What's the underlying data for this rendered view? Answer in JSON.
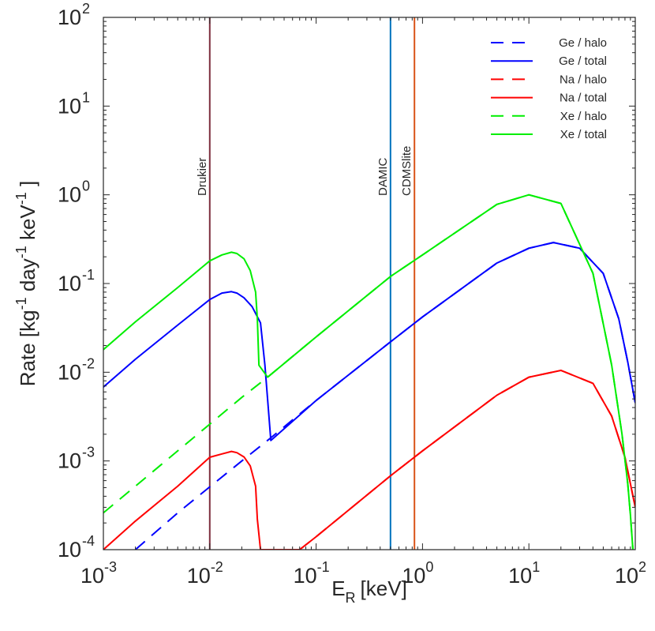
{
  "chart_data": {
    "type": "line",
    "title": "",
    "xlabel": {
      "base": "E",
      "sub": "R",
      "unit": "[keV]"
    },
    "ylabel": {
      "parts": [
        "Rate [kg",
        "-1",
        "  day",
        "-1",
        "  keV",
        "-1",
        " ]"
      ]
    },
    "xscale": "log",
    "yscale": "log",
    "xlim": [
      0.001,
      100
    ],
    "ylim": [
      0.0001,
      100
    ],
    "xticks": [
      {
        "base": "10",
        "exp": "-3"
      },
      {
        "base": "10",
        "exp": "-2"
      },
      {
        "base": "10",
        "exp": "-1"
      },
      {
        "base": "10",
        "exp": "0"
      },
      {
        "base": "10",
        "exp": "1"
      },
      {
        "base": "10",
        "exp": "2"
      }
    ],
    "yticks": [
      {
        "base": "10",
        "exp": "-4"
      },
      {
        "base": "10",
        "exp": "-3"
      },
      {
        "base": "10",
        "exp": "-2"
      },
      {
        "base": "10",
        "exp": "-1"
      },
      {
        "base": "10",
        "exp": "0"
      },
      {
        "base": "10",
        "exp": "1"
      },
      {
        "base": "10",
        "exp": "2"
      }
    ],
    "grid": false,
    "legend_position": "top-right",
    "vlines": [
      {
        "label": "Drukier",
        "x": 0.01,
        "color": "#7e2f3f"
      },
      {
        "label": "DAMIC",
        "x": 0.5,
        "color": "#0072bd"
      },
      {
        "label": "CDMSlite",
        "x": 0.84,
        "color": "#d95319"
      }
    ],
    "series": [
      {
        "name": "Ge / halo",
        "color": "#0000ff",
        "dash": true,
        "x": [
          0.002,
          0.005,
          0.01,
          0.02,
          0.037,
          0.1,
          0.5,
          1,
          5,
          10,
          17,
          30,
          50,
          70,
          85,
          100
        ],
        "y": [
          0.0001,
          0.00026,
          0.00051,
          0.001,
          0.0018,
          0.0048,
          0.022,
          0.042,
          0.17,
          0.25,
          0.29,
          0.25,
          0.13,
          0.04,
          0.013,
          0.0045
        ]
      },
      {
        "name": "Ge / total",
        "color": "#0000ff",
        "dash": false,
        "x": [
          0.001,
          0.002,
          0.005,
          0.01,
          0.013,
          0.016,
          0.018,
          0.021,
          0.025,
          0.03,
          0.033,
          0.0375,
          0.1,
          0.5,
          1,
          5,
          10,
          17,
          30,
          50,
          70,
          85,
          100
        ],
        "y": [
          0.0068,
          0.014,
          0.034,
          0.066,
          0.078,
          0.081,
          0.078,
          0.069,
          0.055,
          0.036,
          0.012,
          0.0017,
          0.0048,
          0.022,
          0.042,
          0.17,
          0.25,
          0.29,
          0.25,
          0.13,
          0.04,
          0.013,
          0.0045
        ]
      },
      {
        "name": "Na / halo",
        "color": "#ff0000",
        "dash": true,
        "x": [
          0.07,
          0.1,
          0.5,
          1,
          5,
          10,
          20,
          40,
          60,
          80,
          100
        ],
        "y": [
          0.0001,
          0.00014,
          0.00068,
          0.0013,
          0.0055,
          0.0088,
          0.0105,
          0.0075,
          0.0032,
          0.0011,
          0.0003
        ]
      },
      {
        "name": "Na / total",
        "color": "#ff0000",
        "dash": false,
        "x": [
          0.001,
          0.002,
          0.005,
          0.01,
          0.013,
          0.016,
          0.018,
          0.021,
          0.024,
          0.027,
          0.028,
          0.03,
          0.07,
          0.1,
          0.5,
          1,
          5,
          10,
          20,
          40,
          60,
          80,
          100
        ],
        "y": [
          0.0001,
          0.00021,
          0.00052,
          0.0011,
          0.0012,
          0.00128,
          0.00124,
          0.00111,
          0.00088,
          0.00052,
          0.00022,
          0.0001,
          0.0001,
          0.00014,
          0.00068,
          0.0013,
          0.0055,
          0.0088,
          0.0105,
          0.0075,
          0.0032,
          0.0011,
          0.0003
        ]
      },
      {
        "name": "Xe / halo",
        "color": "#00ee00",
        "dash": true,
        "x": [
          0.001,
          0.002,
          0.005,
          0.01,
          0.02,
          0.035,
          0.1,
          0.5,
          1,
          5,
          10,
          20,
          40,
          60,
          75,
          85,
          90,
          95
        ],
        "y": [
          0.00026,
          0.00052,
          0.0013,
          0.0026,
          0.0052,
          0.0088,
          0.025,
          0.12,
          0.21,
          0.78,
          1.0,
          0.8,
          0.13,
          0.012,
          0.002,
          0.00055,
          0.00025,
          0.0001
        ]
      },
      {
        "name": "Xe / total",
        "color": "#00ee00",
        "dash": false,
        "x": [
          0.001,
          0.002,
          0.005,
          0.01,
          0.013,
          0.016,
          0.018,
          0.021,
          0.024,
          0.027,
          0.028,
          0.029,
          0.035,
          0.1,
          0.5,
          1,
          5,
          10,
          20,
          40,
          60,
          75,
          85,
          90,
          95
        ],
        "y": [
          0.018,
          0.037,
          0.09,
          0.18,
          0.21,
          0.225,
          0.218,
          0.19,
          0.14,
          0.08,
          0.04,
          0.012,
          0.0088,
          0.025,
          0.12,
          0.21,
          0.78,
          1.0,
          0.8,
          0.13,
          0.012,
          0.002,
          0.00055,
          0.00025,
          0.0001
        ]
      }
    ]
  }
}
